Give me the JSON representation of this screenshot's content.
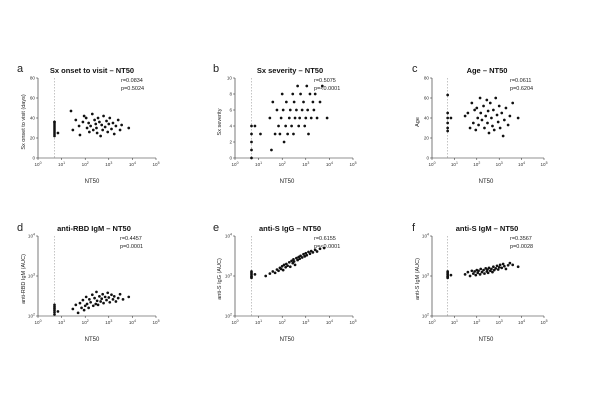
{
  "chart_data": [
    {
      "type": "scatter",
      "panel": "a",
      "title": "Sx onset to visit – NT50",
      "xlabel": "NT50",
      "ylabel": "Sx onset to visit (days)",
      "stats": [
        "r=0.0834",
        "p=0.5024"
      ],
      "xscale": "log",
      "xlim": [
        1,
        100000
      ],
      "xticks": [
        "10^0",
        "10^1",
        "10^2",
        "10^3",
        "10^4",
        "10^5"
      ],
      "yscale": "linear",
      "ylim": [
        0,
        80
      ],
      "yticks": [
        "0",
        "20",
        "40",
        "60",
        "80"
      ],
      "detection_limit": 5,
      "grid": false,
      "points": [
        [
          5,
          36
        ],
        [
          5,
          34
        ],
        [
          5,
          32
        ],
        [
          5,
          30
        ],
        [
          5,
          28
        ],
        [
          5,
          26
        ],
        [
          5,
          24
        ],
        [
          5,
          22
        ],
        [
          5,
          36
        ],
        [
          7,
          25
        ],
        [
          25,
          47
        ],
        [
          30,
          28
        ],
        [
          40,
          38
        ],
        [
          55,
          32
        ],
        [
          60,
          23
        ],
        [
          80,
          36
        ],
        [
          90,
          42
        ],
        [
          110,
          40
        ],
        [
          120,
          30
        ],
        [
          140,
          35
        ],
        [
          150,
          26
        ],
        [
          170,
          32
        ],
        [
          200,
          44
        ],
        [
          220,
          28
        ],
        [
          250,
          38
        ],
        [
          280,
          34
        ],
        [
          300,
          30
        ],
        [
          320,
          25
        ],
        [
          350,
          40
        ],
        [
          400,
          36
        ],
        [
          450,
          22
        ],
        [
          500,
          33
        ],
        [
          550,
          28
        ],
        [
          600,
          42
        ],
        [
          700,
          31
        ],
        [
          800,
          37
        ],
        [
          900,
          26
        ],
        [
          1000,
          34
        ],
        [
          1100,
          40
        ],
        [
          1300,
          29
        ],
        [
          1500,
          35
        ],
        [
          1700,
          24
        ],
        [
          2000,
          32
        ],
        [
          2500,
          38
        ],
        [
          3000,
          28
        ],
        [
          3500,
          33
        ],
        [
          7000,
          30
        ]
      ]
    },
    {
      "type": "scatter",
      "panel": "b",
      "title": "Sx severity – NT50",
      "xlabel": "NT50",
      "ylabel": "Sx severity",
      "stats": [
        "r=0.5075",
        "p=<0.0001"
      ],
      "xscale": "log",
      "xlim": [
        1,
        100000
      ],
      "xticks": [
        "10^0",
        "10^1",
        "10^2",
        "10^3",
        "10^4",
        "10^5"
      ],
      "yscale": "linear",
      "ylim": [
        0,
        10
      ],
      "yticks": [
        "0",
        "2",
        "4",
        "6",
        "8",
        "10"
      ],
      "detection_limit": 5,
      "grid": false,
      "points": [
        [
          5,
          4
        ],
        [
          5,
          3
        ],
        [
          5,
          2
        ],
        [
          5,
          1
        ],
        [
          5,
          0
        ],
        [
          7,
          4
        ],
        [
          12,
          3
        ],
        [
          30,
          5
        ],
        [
          35,
          1
        ],
        [
          40,
          7
        ],
        [
          50,
          3
        ],
        [
          60,
          6
        ],
        [
          70,
          4
        ],
        [
          80,
          3
        ],
        [
          90,
          5
        ],
        [
          100,
          8
        ],
        [
          110,
          6
        ],
        [
          120,
          2
        ],
        [
          140,
          4
        ],
        [
          150,
          7
        ],
        [
          170,
          3
        ],
        [
          200,
          5
        ],
        [
          220,
          6
        ],
        [
          250,
          4
        ],
        [
          280,
          8
        ],
        [
          300,
          3
        ],
        [
          320,
          7
        ],
        [
          350,
          5
        ],
        [
          400,
          6
        ],
        [
          450,
          9
        ],
        [
          500,
          4
        ],
        [
          550,
          5
        ],
        [
          600,
          8
        ],
        [
          700,
          6
        ],
        [
          800,
          7
        ],
        [
          900,
          4
        ],
        [
          1000,
          5
        ],
        [
          1100,
          9
        ],
        [
          1200,
          6
        ],
        [
          1300,
          3
        ],
        [
          1500,
          8
        ],
        [
          1700,
          5
        ],
        [
          2000,
          7
        ],
        [
          2200,
          6
        ],
        [
          2500,
          8
        ],
        [
          3000,
          5
        ],
        [
          4000,
          7
        ],
        [
          5000,
          9
        ],
        [
          8000,
          5
        ]
      ]
    },
    {
      "type": "scatter",
      "panel": "c",
      "title": "Age – NT50",
      "xlabel": "NT50",
      "ylabel": "Age",
      "stats": [
        "r=0.0611",
        "p=0.6204"
      ],
      "xscale": "log",
      "xlim": [
        1,
        100000
      ],
      "xticks": [
        "10^0",
        "10^1",
        "10^2",
        "10^3",
        "10^4",
        "10^5"
      ],
      "yscale": "linear",
      "ylim": [
        0,
        80
      ],
      "yticks": [
        "0",
        "20",
        "40",
        "60",
        "80"
      ],
      "detection_limit": 5,
      "grid": false,
      "points": [
        [
          5,
          63
        ],
        [
          5,
          45
        ],
        [
          5,
          40
        ],
        [
          5,
          35
        ],
        [
          5,
          30
        ],
        [
          5,
          27
        ],
        [
          7,
          40
        ],
        [
          30,
          42
        ],
        [
          40,
          45
        ],
        [
          50,
          30
        ],
        [
          60,
          55
        ],
        [
          70,
          35
        ],
        [
          80,
          48
        ],
        [
          90,
          28
        ],
        [
          100,
          50
        ],
        [
          110,
          40
        ],
        [
          120,
          33
        ],
        [
          140,
          60
        ],
        [
          150,
          45
        ],
        [
          170,
          38
        ],
        [
          200,
          52
        ],
        [
          220,
          30
        ],
        [
          250,
          42
        ],
        [
          280,
          58
        ],
        [
          300,
          35
        ],
        [
          320,
          47
        ],
        [
          350,
          25
        ],
        [
          400,
          55
        ],
        [
          450,
          40
        ],
        [
          500,
          32
        ],
        [
          550,
          48
        ],
        [
          600,
          28
        ],
        [
          700,
          60
        ],
        [
          800,
          43
        ],
        [
          900,
          36
        ],
        [
          1000,
          52
        ],
        [
          1100,
          30
        ],
        [
          1300,
          45
        ],
        [
          1500,
          22
        ],
        [
          1700,
          38
        ],
        [
          2000,
          50
        ],
        [
          2500,
          33
        ],
        [
          3000,
          42
        ],
        [
          4000,
          55
        ],
        [
          7000,
          40
        ]
      ]
    },
    {
      "type": "scatter",
      "panel": "d",
      "title": "anti-RBD IgM – NT50",
      "xlabel": "NT50",
      "ylabel": "anti-RBD IgM (AUC)",
      "stats": [
        "r=0.4457",
        "p=0.0001"
      ],
      "xscale": "log",
      "xlim": [
        1,
        100000
      ],
      "xticks": [
        "10^0",
        "10^1",
        "10^2",
        "10^3",
        "10^4",
        "10^5"
      ],
      "yscale": "log",
      "ylim": [
        100,
        10000
      ],
      "yticks": [
        "10^2",
        "10^3",
        "10^4"
      ],
      "detection_limit": 5,
      "grid": false,
      "points": [
        [
          5,
          190
        ],
        [
          5,
          170
        ],
        [
          5,
          155
        ],
        [
          5,
          140
        ],
        [
          5,
          125
        ],
        [
          5,
          110
        ],
        [
          7,
          130
        ],
        [
          30,
          150
        ],
        [
          40,
          190
        ],
        [
          50,
          120
        ],
        [
          60,
          210
        ],
        [
          70,
          160
        ],
        [
          80,
          250
        ],
        [
          90,
          140
        ],
        [
          100,
          180
        ],
        [
          110,
          300
        ],
        [
          120,
          200
        ],
        [
          140,
          160
        ],
        [
          150,
          260
        ],
        [
          170,
          220
        ],
        [
          200,
          340
        ],
        [
          220,
          180
        ],
        [
          250,
          280
        ],
        [
          280,
          200
        ],
        [
          300,
          400
        ],
        [
          320,
          240
        ],
        [
          350,
          190
        ],
        [
          400,
          310
        ],
        [
          450,
          230
        ],
        [
          500,
          270
        ],
        [
          550,
          350
        ],
        [
          600,
          210
        ],
        [
          700,
          300
        ],
        [
          800,
          250
        ],
        [
          900,
          380
        ],
        [
          1000,
          290
        ],
        [
          1100,
          220
        ],
        [
          1300,
          340
        ],
        [
          1500,
          260
        ],
        [
          1700,
          310
        ],
        [
          2000,
          230
        ],
        [
          2500,
          280
        ],
        [
          3000,
          350
        ],
        [
          4000,
          260
        ],
        [
          7000,
          300
        ]
      ]
    },
    {
      "type": "scatter",
      "panel": "e",
      "title": "anti-S IgG – NT50",
      "xlabel": "NT50",
      "ylabel": "anti-S IgG (AUC)",
      "stats": [
        "r=0.6155",
        "p=<0.0001"
      ],
      "xscale": "log",
      "xlim": [
        1,
        100000
      ],
      "xticks": [
        "10^0",
        "10^1",
        "10^2",
        "10^3",
        "10^4",
        "10^5"
      ],
      "yscale": "log",
      "ylim": [
        100,
        10000
      ],
      "yticks": [
        "10^2",
        "10^3",
        "10^4"
      ],
      "detection_limit": 5,
      "grid": false,
      "points": [
        [
          5,
          1300
        ],
        [
          5,
          1200
        ],
        [
          5,
          1100
        ],
        [
          5,
          1000
        ],
        [
          5,
          950
        ],
        [
          5,
          900
        ],
        [
          7,
          1100
        ],
        [
          20,
          1000
        ],
        [
          30,
          1150
        ],
        [
          40,
          1300
        ],
        [
          50,
          1200
        ],
        [
          60,
          1450
        ],
        [
          70,
          1350
        ],
        [
          80,
          1600
        ],
        [
          90,
          1500
        ],
        [
          100,
          1750
        ],
        [
          110,
          1400
        ],
        [
          120,
          1900
        ],
        [
          140,
          1650
        ],
        [
          150,
          2000
        ],
        [
          170,
          1800
        ],
        [
          200,
          2200
        ],
        [
          220,
          1700
        ],
        [
          250,
          2400
        ],
        [
          280,
          2100
        ],
        [
          300,
          2600
        ],
        [
          320,
          2300
        ],
        [
          350,
          1900
        ],
        [
          400,
          2800
        ],
        [
          450,
          2500
        ],
        [
          500,
          3000
        ],
        [
          550,
          2700
        ],
        [
          600,
          3200
        ],
        [
          700,
          2900
        ],
        [
          800,
          3500
        ],
        [
          900,
          3100
        ],
        [
          1000,
          3700
        ],
        [
          1100,
          3300
        ],
        [
          1300,
          4000
        ],
        [
          1500,
          3600
        ],
        [
          1700,
          4200
        ],
        [
          2000,
          3900
        ],
        [
          2500,
          4500
        ],
        [
          3000,
          4100
        ],
        [
          4000,
          4800
        ],
        [
          6000,
          5000
        ]
      ]
    },
    {
      "type": "scatter",
      "panel": "f",
      "title": "anti-S IgM – NT50",
      "xlabel": "NT50",
      "ylabel": "anti-S IgM (AUC)",
      "stats": [
        "r=0.3567",
        "p=0.0028"
      ],
      "xscale": "log",
      "xlim": [
        1,
        100000
      ],
      "xticks": [
        "10^0",
        "10^1",
        "10^2",
        "10^3",
        "10^4",
        "10^5"
      ],
      "yscale": "log",
      "ylim": [
        100,
        10000
      ],
      "yticks": [
        "10^2",
        "10^3",
        "10^4"
      ],
      "detection_limit": 5,
      "grid": false,
      "points": [
        [
          5,
          1300
        ],
        [
          5,
          1200
        ],
        [
          5,
          1100
        ],
        [
          5,
          1000
        ],
        [
          5,
          950
        ],
        [
          5,
          900
        ],
        [
          7,
          1050
        ],
        [
          30,
          1100
        ],
        [
          40,
          1250
        ],
        [
          50,
          1000
        ],
        [
          60,
          1350
        ],
        [
          70,
          1150
        ],
        [
          80,
          1300
        ],
        [
          90,
          1050
        ],
        [
          100,
          1400
        ],
        [
          110,
          1200
        ],
        [
          120,
          1350
        ],
        [
          140,
          1100
        ],
        [
          150,
          1500
        ],
        [
          170,
          1250
        ],
        [
          200,
          1400
        ],
        [
          220,
          1150
        ],
        [
          250,
          1550
        ],
        [
          280,
          1300
        ],
        [
          300,
          1450
        ],
        [
          320,
          1200
        ],
        [
          350,
          1600
        ],
        [
          400,
          1350
        ],
        [
          450,
          1500
        ],
        [
          500,
          1250
        ],
        [
          550,
          1700
        ],
        [
          600,
          1400
        ],
        [
          700,
          1550
        ],
        [
          800,
          1800
        ],
        [
          900,
          1450
        ],
        [
          1000,
          1650
        ],
        [
          1100,
          1900
        ],
        [
          1300,
          1600
        ],
        [
          1500,
          2000
        ],
        [
          1700,
          1750
        ],
        [
          2000,
          1500
        ],
        [
          2500,
          1850
        ],
        [
          3000,
          2100
        ],
        [
          4000,
          1900
        ],
        [
          7000,
          1700
        ]
      ]
    }
  ]
}
